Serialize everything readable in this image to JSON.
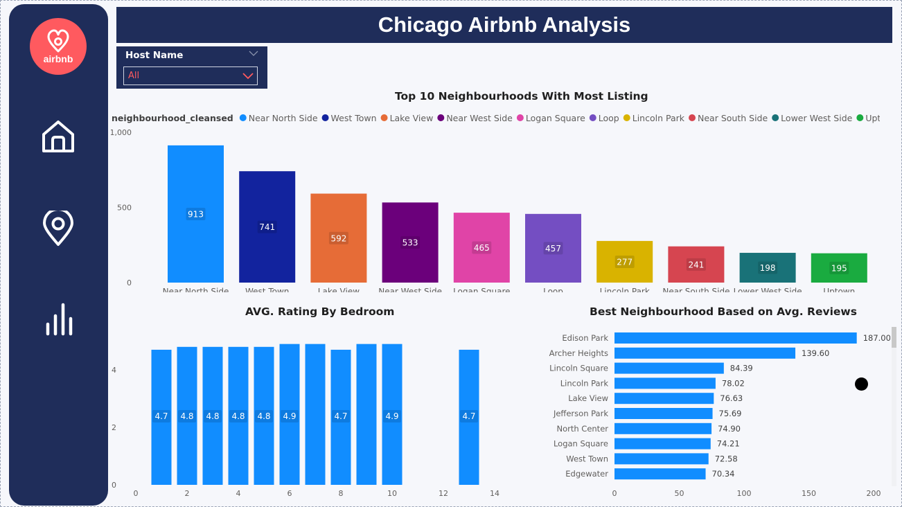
{
  "title": "Chicago Airbnb Analysis",
  "sidebar": {
    "logo_text": "airbnb",
    "nav": [
      {
        "icon": "home-icon"
      },
      {
        "icon": "map-pin-icon"
      },
      {
        "icon": "bar-chart-icon"
      }
    ]
  },
  "slicer": {
    "label": "Host Name",
    "value": "All"
  },
  "colors": {
    "navy": "#1f2d5a",
    "brand": "#ff5a5f",
    "bar_blue": "#118dff"
  },
  "chart_data": [
    {
      "type": "bar",
      "title": "Top 10 Neighbourhoods With Most Listing",
      "legend_title": "neighbourhood_cleansed",
      "legend_position": "top",
      "categories": [
        "Near North Side",
        "West Town",
        "Lake View",
        "Near West Side",
        "Logan Square",
        "Loop",
        "Lincoln Park",
        "Near South Side",
        "Lower West Side",
        "Uptown"
      ],
      "values": [
        913,
        741,
        592,
        533,
        465,
        457,
        277,
        241,
        198,
        195
      ],
      "colors": [
        "#118dff",
        "#12239e",
        "#e66c37",
        "#6b007b",
        "#e044a7",
        "#744ec2",
        "#d9b300",
        "#d64550",
        "#197278",
        "#1aab40"
      ],
      "y_ticks": [
        "0",
        "500",
        "1,000"
      ],
      "ylim": [
        0,
        1000
      ]
    },
    {
      "type": "bar",
      "title": "AVG. Rating By Bedroom",
      "x": [
        1,
        2,
        3,
        4,
        5,
        6,
        7,
        8,
        9,
        10,
        13
      ],
      "values": [
        4.7,
        4.8,
        4.8,
        4.8,
        4.8,
        4.9,
        4.9,
        4.7,
        4.9,
        4.9,
        4.7
      ],
      "data_labels": [
        "4.7",
        "4.8",
        "4.8",
        "4.8",
        "4.8",
        "4.9",
        "",
        "4.7",
        "",
        "4.9",
        "4.7"
      ],
      "x_ticks": [
        "0",
        "2",
        "4",
        "6",
        "8",
        "10",
        "12",
        "14"
      ],
      "y_ticks": [
        "0",
        "2",
        "4"
      ],
      "xlim": [
        0,
        14
      ],
      "ylim": [
        0,
        5.12
      ],
      "color": "#118dff"
    },
    {
      "type": "bar",
      "orientation": "horizontal",
      "title": "Best Neighbourhood Based on Avg. Reviews",
      "categories": [
        "Edison Park",
        "Archer Heights",
        "Lincoln Square",
        "Lincoln Park",
        "Lake View",
        "Jefferson Park",
        "North Center",
        "Logan Square",
        "West Town",
        "Edgewater"
      ],
      "values": [
        187.0,
        139.6,
        84.39,
        78.02,
        76.63,
        75.69,
        74.9,
        74.21,
        72.58,
        70.34
      ],
      "data_labels": [
        "187.00",
        "139.60",
        "84.39",
        "78.02",
        "76.63",
        "75.69",
        "74.90",
        "74.21",
        "72.58",
        "70.34"
      ],
      "x_ticks": [
        "0",
        "50",
        "100",
        "150",
        "200"
      ],
      "xlim": [
        0,
        200
      ],
      "color": "#118dff"
    }
  ]
}
